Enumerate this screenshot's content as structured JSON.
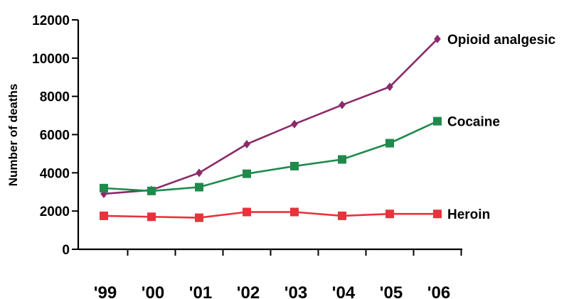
{
  "chart_data": {
    "type": "line",
    "title": "",
    "xlabel": "",
    "ylabel": "Number of deaths",
    "categories": [
      "'99",
      "'00",
      "'01",
      "'02",
      "'03",
      "'04",
      "'05",
      "'06"
    ],
    "ylim": [
      0,
      12000
    ],
    "yticks": [
      "0",
      "2000",
      "4000",
      "6000",
      "8000",
      "10000",
      "12000"
    ],
    "grid": false,
    "legend": "inline labels at line ends",
    "series": [
      {
        "name": "Opioid analgesic",
        "marker": "diamond",
        "color": "#8b2a6b",
        "values": [
          2900,
          3100,
          4000,
          5500,
          6550,
          7550,
          8500,
          11000
        ]
      },
      {
        "name": "Cocaine",
        "marker": "square",
        "color": "#1f8a4c",
        "values": [
          3200,
          3050,
          3250,
          3950,
          4350,
          4700,
          5550,
          6700
        ]
      },
      {
        "name": "Heroin",
        "marker": "square",
        "color": "#e8323c",
        "values": [
          1750,
          1700,
          1650,
          1950,
          1950,
          1750,
          1850,
          1850
        ]
      }
    ]
  }
}
